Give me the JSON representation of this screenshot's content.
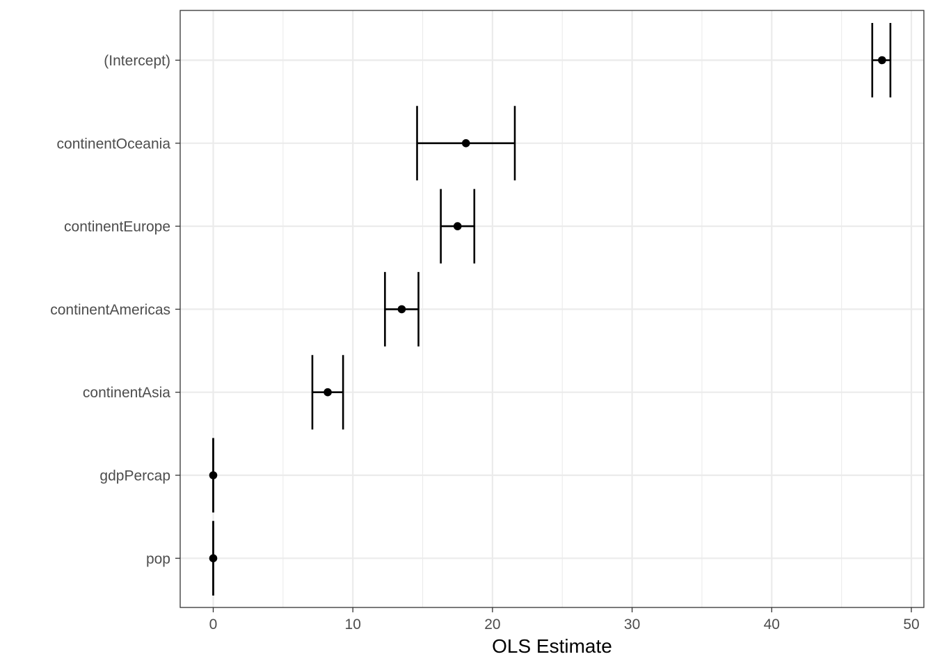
{
  "chart_data": {
    "type": "scatter",
    "subtype": "coefficient-plot-with-error-bars",
    "title": "",
    "xlabel": "OLS Estimate",
    "ylabel": "",
    "xlim": [
      -2.4,
      50.9
    ],
    "x_ticks": [
      0,
      10,
      20,
      30,
      40,
      50
    ],
    "x_tick_labels": [
      "0",
      "10",
      "20",
      "30",
      "40",
      "50"
    ],
    "categories": [
      "(Intercept)",
      "continentOceania",
      "continentEurope",
      "continentAmericas",
      "continentAsia",
      "gdpPercap",
      "pop"
    ],
    "estimates": [
      47.9,
      18.1,
      17.5,
      13.5,
      8.2,
      0.0,
      0.0
    ],
    "conf_low": [
      47.2,
      14.6,
      16.3,
      12.3,
      7.1,
      0.0,
      0.0
    ],
    "conf_high": [
      48.5,
      21.6,
      18.7,
      14.7,
      9.3,
      0.0,
      0.0
    ],
    "grid": true,
    "legend": "none",
    "colors": {
      "points": "#000000",
      "errorbars": "#000000",
      "grid": "#ebebeb",
      "panel_border": "#333333",
      "tick_text": "#4d4d4d"
    }
  }
}
